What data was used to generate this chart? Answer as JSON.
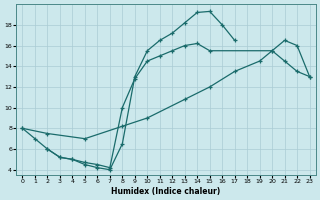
{
  "bg_color": "#cce8ec",
  "grid_color": "#aaccd4",
  "line_color": "#1a6b6b",
  "xlabel": "Humidex (Indice chaleur)",
  "curve1_x": [
    0,
    1,
    2,
    3,
    4,
    5,
    6,
    7,
    8,
    9,
    10,
    11,
    12,
    13,
    14,
    15,
    16,
    17
  ],
  "curve1_y": [
    8,
    7,
    6,
    5.2,
    5.0,
    4.5,
    4.2,
    4.0,
    6.5,
    13.0,
    15.5,
    16.5,
    17.2,
    18.2,
    19.2,
    19.3,
    18.0,
    16.5
  ],
  "curve2_x": [
    0,
    2,
    5,
    8,
    10,
    13,
    15,
    17,
    19,
    20,
    21,
    22,
    23
  ],
  "curve2_y": [
    8,
    7.5,
    7.0,
    8.2,
    9.0,
    10.8,
    12.0,
    13.5,
    14.5,
    15.5,
    16.5,
    16.0,
    13.0
  ],
  "curve3_x": [
    2,
    3,
    4,
    5,
    6,
    7,
    8,
    9,
    10,
    11,
    12,
    13,
    14,
    15,
    20,
    21,
    22,
    23
  ],
  "curve3_y": [
    6.0,
    5.2,
    5.0,
    4.7,
    4.5,
    4.2,
    10.0,
    12.8,
    14.5,
    15.0,
    15.5,
    16.0,
    16.2,
    15.5,
    15.5,
    14.5,
    13.5,
    13.0
  ],
  "xlim": [
    -0.5,
    23.5
  ],
  "ylim": [
    3.5,
    20.0
  ],
  "yticks": [
    4,
    6,
    8,
    10,
    12,
    14,
    16,
    18
  ],
  "xticks": [
    0,
    1,
    2,
    3,
    4,
    5,
    6,
    7,
    8,
    9,
    10,
    11,
    12,
    13,
    14,
    15,
    16,
    17,
    18,
    19,
    20,
    21,
    22,
    23
  ]
}
